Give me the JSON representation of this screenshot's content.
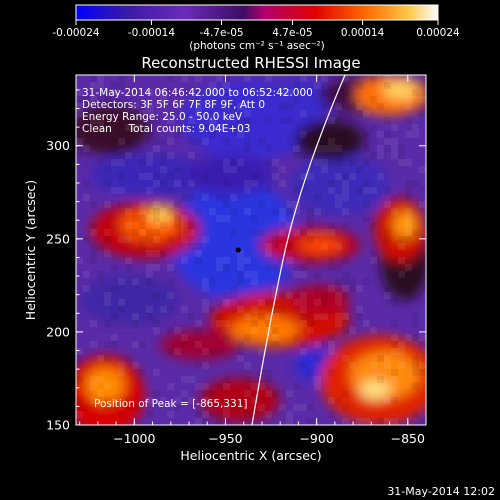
{
  "colorbar": {
    "tick_labels": [
      "-0.00024",
      "-0.00014",
      "-4.7e-05",
      "4.7e-05",
      "0.00014",
      "0.00024"
    ],
    "tick_values": [
      -0.00024,
      -0.00014,
      -4.7e-05,
      4.7e-05,
      0.00014,
      0.00024
    ],
    "range": [
      -0.00024,
      0.00024
    ],
    "units_label": "(photons cm⁻² s⁻¹ asec⁻²)",
    "colors": [
      "#0000ff",
      "#3a1aa6",
      "#6b2bb8",
      "#b3006e",
      "#e00000",
      "#ff6a00",
      "#ffc84a",
      "#ffffff"
    ]
  },
  "chart_data": {
    "type": "heatmap",
    "title": "Reconstructed RHESSI Image",
    "xlabel": "Heliocentric X (arcsec)",
    "ylabel": "Heliocentric Y (arcsec)",
    "xlim": [
      -1032,
      -840
    ],
    "ylim": [
      150,
      338
    ],
    "x_ticks": [
      -1000,
      -950,
      -900,
      -850
    ],
    "x_tick_labels": [
      "−1000",
      "−950",
      "−900",
      "−850"
    ],
    "y_ticks": [
      150,
      200,
      250,
      300
    ],
    "y_tick_labels": [
      "150",
      "200",
      "250",
      "300"
    ],
    "annotations": [
      "31-May-2014 06:46:42.000 to 06:52:42.000",
      "Detectors: 3F 5F 6F 7F 8F 9F, Att 0",
      "Energy Range: 25.0 - 50.0 keV",
      "Clean     Total counts: 9.04E+03"
    ],
    "peak_label": "Position of Peak = [-865,331]",
    "peak_position": [
      -865,
      331
    ],
    "marker_position": [
      -943,
      244
    ],
    "grid": false
  },
  "footer": {
    "timestamp": "31-May-2014 12:02"
  }
}
